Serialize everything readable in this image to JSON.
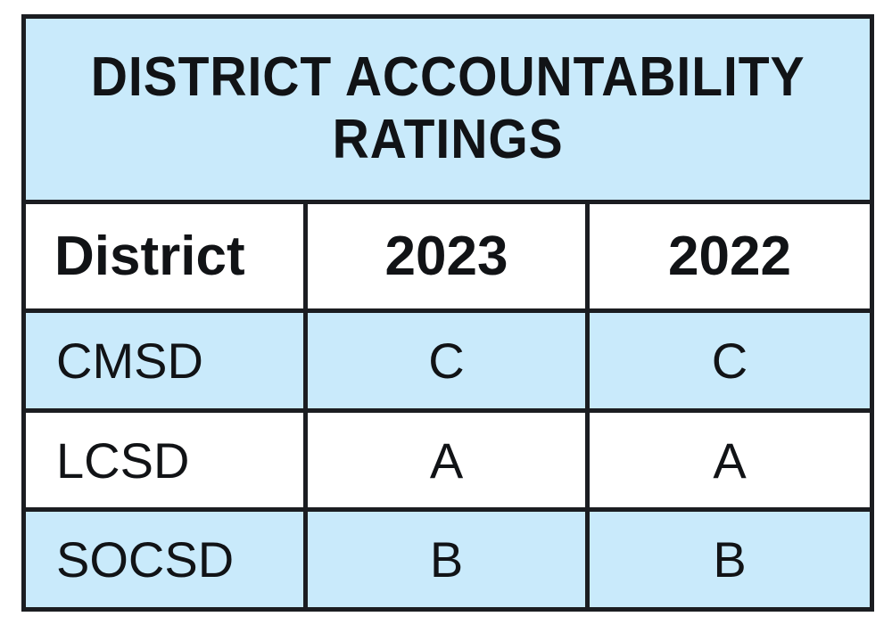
{
  "title": {
    "line1": "DISTRICT ACCOUNTABILITY",
    "line2": "RATINGS"
  },
  "headers": [
    "District",
    "2023",
    "2022"
  ],
  "rows": [
    {
      "district": "CMSD",
      "y2023": "C",
      "y2022": "C"
    },
    {
      "district": "LCSD",
      "y2023": "A",
      "y2022": "A"
    },
    {
      "district": "SOCSD",
      "y2023": "B",
      "y2022": "B"
    }
  ],
  "colors": {
    "band_blue": "#c9eafb",
    "border": "#1b1d21",
    "white": "#ffffff"
  }
}
